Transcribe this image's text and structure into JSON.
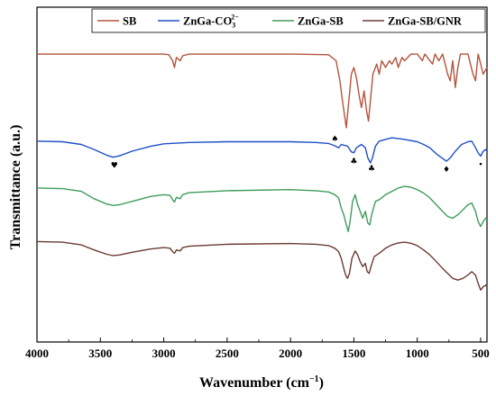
{
  "chart_data": {
    "type": "line",
    "title": "",
    "xlabel": "Wavenumber (cm",
    "xlabel_exponent": "−1",
    "xlabel_suffix": ")",
    "ylabel": "Transmittance (a.u.)",
    "xlim": [
      4000,
      450
    ],
    "x_reversed": true,
    "y_ticks_shown": false,
    "grid": false,
    "legend_placement": "top-right",
    "x_ticks": [
      4000,
      3500,
      3000,
      2500,
      2000,
      1500,
      1000,
      500
    ],
    "x_tick_labels": [
      "4000",
      "3500",
      "3000",
      "2500",
      "2000",
      "1500",
      "1000",
      "500"
    ],
    "series": [
      {
        "name": "SB",
        "color": "#b5533c",
        "baseline": 0.86,
        "points": [
          [
            4000,
            0.86
          ],
          [
            3500,
            0.86
          ],
          [
            3000,
            0.86
          ],
          [
            2960,
            0.858
          ],
          [
            2930,
            0.84
          ],
          [
            2915,
            0.82
          ],
          [
            2900,
            0.85
          ],
          [
            2870,
            0.84
          ],
          [
            2850,
            0.855
          ],
          [
            2800,
            0.86
          ],
          [
            2000,
            0.86
          ],
          [
            1700,
            0.858
          ],
          [
            1640,
            0.84
          ],
          [
            1610,
            0.78
          ],
          [
            1590,
            0.72
          ],
          [
            1575,
            0.68
          ],
          [
            1560,
            0.64
          ],
          [
            1545,
            0.7
          ],
          [
            1520,
            0.8
          ],
          [
            1500,
            0.82
          ],
          [
            1480,
            0.79
          ],
          [
            1460,
            0.74
          ],
          [
            1440,
            0.7
          ],
          [
            1420,
            0.75
          ],
          [
            1400,
            0.69
          ],
          [
            1385,
            0.66
          ],
          [
            1370,
            0.72
          ],
          [
            1350,
            0.8
          ],
          [
            1320,
            0.83
          ],
          [
            1300,
            0.8
          ],
          [
            1280,
            0.84
          ],
          [
            1250,
            0.82
          ],
          [
            1220,
            0.84
          ],
          [
            1200,
            0.83
          ],
          [
            1170,
            0.85
          ],
          [
            1150,
            0.82
          ],
          [
            1120,
            0.85
          ],
          [
            1100,
            0.84
          ],
          [
            1050,
            0.86
          ],
          [
            1000,
            0.86
          ],
          [
            960,
            0.84
          ],
          [
            940,
            0.86
          ],
          [
            880,
            0.83
          ],
          [
            860,
            0.86
          ],
          [
            830,
            0.84
          ],
          [
            800,
            0.86
          ],
          [
            760,
            0.8
          ],
          [
            740,
            0.78
          ],
          [
            720,
            0.84
          ],
          [
            700,
            0.76
          ],
          [
            680,
            0.82
          ],
          [
            660,
            0.86
          ],
          [
            600,
            0.86
          ],
          [
            560,
            0.8
          ],
          [
            540,
            0.78
          ],
          [
            520,
            0.86
          ],
          [
            480,
            0.8
          ],
          [
            450,
            0.82
          ]
        ]
      },
      {
        "name": "ZnGa-CO",
        "name_subscript": "3",
        "name_superscript": "2−",
        "color": "#1f4fc7",
        "baseline": 0.6,
        "points": [
          [
            4000,
            0.6
          ],
          [
            3800,
            0.598
          ],
          [
            3650,
            0.59
          ],
          [
            3550,
            0.575
          ],
          [
            3450,
            0.558
          ],
          [
            3400,
            0.552
          ],
          [
            3350,
            0.556
          ],
          [
            3250,
            0.57
          ],
          [
            3100,
            0.585
          ],
          [
            3000,
            0.592
          ],
          [
            2800,
            0.596
          ],
          [
            2500,
            0.598
          ],
          [
            2000,
            0.598
          ],
          [
            1800,
            0.596
          ],
          [
            1700,
            0.593
          ],
          [
            1650,
            0.586
          ],
          [
            1620,
            0.58
          ],
          [
            1600,
            0.59
          ],
          [
            1550,
            0.585
          ],
          [
            1520,
            0.568
          ],
          [
            1500,
            0.565
          ],
          [
            1480,
            0.58
          ],
          [
            1440,
            0.59
          ],
          [
            1410,
            0.58
          ],
          [
            1390,
            0.55
          ],
          [
            1370,
            0.535
          ],
          [
            1355,
            0.548
          ],
          [
            1330,
            0.585
          ],
          [
            1300,
            0.6
          ],
          [
            1250,
            0.605
          ],
          [
            1200,
            0.61
          ],
          [
            1100,
            0.605
          ],
          [
            1000,
            0.598
          ],
          [
            950,
            0.59
          ],
          [
            900,
            0.58
          ],
          [
            850,
            0.562
          ],
          [
            800,
            0.548
          ],
          [
            770,
            0.54
          ],
          [
            740,
            0.55
          ],
          [
            700,
            0.57
          ],
          [
            650,
            0.59
          ],
          [
            600,
            0.598
          ],
          [
            570,
            0.6
          ],
          [
            540,
            0.58
          ],
          [
            520,
            0.565
          ],
          [
            500,
            0.555
          ],
          [
            480,
            0.57
          ],
          [
            460,
            0.575
          ],
          [
            450,
            0.57
          ]
        ]
      },
      {
        "name": "ZnGa-SB",
        "color": "#3f9b5c",
        "baseline": 0.46,
        "points": [
          [
            4000,
            0.46
          ],
          [
            3800,
            0.458
          ],
          [
            3650,
            0.45
          ],
          [
            3550,
            0.428
          ],
          [
            3450,
            0.412
          ],
          [
            3400,
            0.408
          ],
          [
            3350,
            0.41
          ],
          [
            3250,
            0.42
          ],
          [
            3100,
            0.435
          ],
          [
            3000,
            0.44
          ],
          [
            2950,
            0.438
          ],
          [
            2930,
            0.425
          ],
          [
            2915,
            0.418
          ],
          [
            2900,
            0.432
          ],
          [
            2870,
            0.428
          ],
          [
            2850,
            0.44
          ],
          [
            2800,
            0.446
          ],
          [
            2500,
            0.452
          ],
          [
            2000,
            0.455
          ],
          [
            1800,
            0.452
          ],
          [
            1700,
            0.448
          ],
          [
            1650,
            0.44
          ],
          [
            1620,
            0.43
          ],
          [
            1600,
            0.4
          ],
          [
            1580,
            0.38
          ],
          [
            1560,
            0.35
          ],
          [
            1545,
            0.33
          ],
          [
            1530,
            0.36
          ],
          [
            1510,
            0.42
          ],
          [
            1490,
            0.44
          ],
          [
            1470,
            0.41
          ],
          [
            1450,
            0.39
          ],
          [
            1430,
            0.37
          ],
          [
            1410,
            0.39
          ],
          [
            1390,
            0.355
          ],
          [
            1375,
            0.35
          ],
          [
            1360,
            0.38
          ],
          [
            1330,
            0.42
          ],
          [
            1300,
            0.425
          ],
          [
            1250,
            0.44
          ],
          [
            1200,
            0.45
          ],
          [
            1150,
            0.46
          ],
          [
            1100,
            0.465
          ],
          [
            1050,
            0.462
          ],
          [
            1000,
            0.455
          ],
          [
            950,
            0.445
          ],
          [
            900,
            0.43
          ],
          [
            850,
            0.41
          ],
          [
            800,
            0.39
          ],
          [
            760,
            0.375
          ],
          [
            720,
            0.37
          ],
          [
            680,
            0.38
          ],
          [
            640,
            0.395
          ],
          [
            600,
            0.41
          ],
          [
            570,
            0.415
          ],
          [
            540,
            0.39
          ],
          [
            520,
            0.36
          ],
          [
            500,
            0.345
          ],
          [
            480,
            0.36
          ],
          [
            460,
            0.37
          ],
          [
            450,
            0.365
          ]
        ]
      },
      {
        "name": "ZnGa-SB/GNR",
        "color": "#6b3a34",
        "baseline": 0.3,
        "points": [
          [
            4000,
            0.3
          ],
          [
            3800,
            0.298
          ],
          [
            3650,
            0.29
          ],
          [
            3550,
            0.275
          ],
          [
            3450,
            0.262
          ],
          [
            3400,
            0.258
          ],
          [
            3350,
            0.26
          ],
          [
            3250,
            0.268
          ],
          [
            3100,
            0.278
          ],
          [
            3000,
            0.282
          ],
          [
            2950,
            0.28
          ],
          [
            2930,
            0.27
          ],
          [
            2915,
            0.265
          ],
          [
            2900,
            0.275
          ],
          [
            2870,
            0.272
          ],
          [
            2850,
            0.282
          ],
          [
            2800,
            0.286
          ],
          [
            2500,
            0.292
          ],
          [
            2000,
            0.294
          ],
          [
            1800,
            0.292
          ],
          [
            1700,
            0.288
          ],
          [
            1650,
            0.28
          ],
          [
            1620,
            0.27
          ],
          [
            1600,
            0.25
          ],
          [
            1580,
            0.22
          ],
          [
            1565,
            0.2
          ],
          [
            1550,
            0.19
          ],
          [
            1535,
            0.205
          ],
          [
            1515,
            0.25
          ],
          [
            1490,
            0.272
          ],
          [
            1470,
            0.26
          ],
          [
            1450,
            0.24
          ],
          [
            1430,
            0.225
          ],
          [
            1410,
            0.235
          ],
          [
            1395,
            0.21
          ],
          [
            1380,
            0.205
          ],
          [
            1365,
            0.225
          ],
          [
            1340,
            0.255
          ],
          [
            1300,
            0.265
          ],
          [
            1250,
            0.28
          ],
          [
            1200,
            0.29
          ],
          [
            1150,
            0.296
          ],
          [
            1100,
            0.298
          ],
          [
            1050,
            0.295
          ],
          [
            1000,
            0.288
          ],
          [
            950,
            0.275
          ],
          [
            900,
            0.26
          ],
          [
            850,
            0.24
          ],
          [
            800,
            0.22
          ],
          [
            760,
            0.205
          ],
          [
            720,
            0.19
          ],
          [
            680,
            0.185
          ],
          [
            640,
            0.19
          ],
          [
            600,
            0.2
          ],
          [
            570,
            0.21
          ],
          [
            540,
            0.2
          ],
          [
            520,
            0.175
          ],
          [
            500,
            0.155
          ],
          [
            480,
            0.165
          ],
          [
            460,
            0.17
          ],
          [
            450,
            0.165
          ]
        ]
      }
    ],
    "annotations": [
      {
        "symbol": "♥",
        "x": 3390,
        "series": 1,
        "offset": "below"
      },
      {
        "symbol": "♠",
        "x": 1650,
        "series": 1,
        "offset": "above"
      },
      {
        "symbol": "♣",
        "x": 1500,
        "series": 1,
        "offset": "below"
      },
      {
        "symbol": "♣",
        "x": 1360,
        "series": 1,
        "offset": "below"
      },
      {
        "symbol": "♦",
        "x": 770,
        "series": 1,
        "offset": "below"
      },
      {
        "symbol": "•",
        "x": 500,
        "series": 1,
        "offset": "below"
      }
    ]
  }
}
